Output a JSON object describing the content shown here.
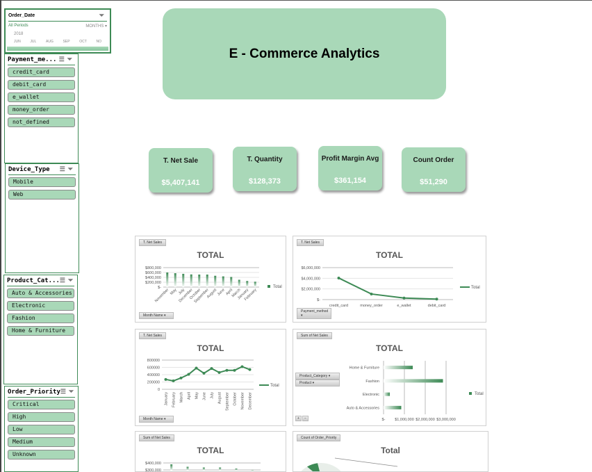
{
  "title": "E - Commerce Analytics",
  "slicers": {
    "order_date": {
      "title": "Order_Date",
      "all_periods": "All Periods",
      "unit": "MONTHS",
      "year": "2018",
      "months": [
        "JUN",
        "JUL",
        "AUG",
        "SEP",
        "OCT",
        "NO"
      ]
    },
    "payment": {
      "title": "Payment_me...",
      "items": [
        "credit_card",
        "debit_card",
        "e_wallet",
        "money_order",
        "not_defined"
      ]
    },
    "device": {
      "title": "Device_Type",
      "items": [
        "Mobile",
        "Web"
      ]
    },
    "category": {
      "title": "Product_Cat...",
      "items": [
        "Auto & Accessories",
        "Electronic",
        "Fashion",
        "Home & Furniture"
      ]
    },
    "priority": {
      "title": "Order_Priority",
      "items": [
        "Critical",
        "High",
        "Low",
        "Medium",
        "Unknown"
      ]
    }
  },
  "kpis": [
    {
      "label": "T. Net Sale",
      "value": "$5,407,141"
    },
    {
      "label": "T. Quantity",
      "value": "$128,373"
    },
    {
      "label": "Profit Margin Avg",
      "value": "$361,154"
    },
    {
      "label": "Count Order",
      "value": "$51,290"
    }
  ],
  "accent": "#3d8a55",
  "chart_data": [
    {
      "type": "bar",
      "field_button": "T. Net Sales",
      "filter_button": "Month Name",
      "title": "TOTAL",
      "legend": "Total",
      "legend_position": "right",
      "categories": [
        "November",
        "May",
        "July",
        "December",
        "October",
        "September",
        "August",
        "June",
        "April",
        "March",
        "January",
        "February"
      ],
      "values": [
        600000,
        570000,
        545000,
        520000,
        515000,
        515000,
        465000,
        440000,
        415000,
        300000,
        250000,
        220000
      ],
      "yticks": [
        "$-",
        "$200,000",
        "$400,000",
        "$600,000",
        "$800,000"
      ],
      "ylim": [
        0,
        800000
      ]
    },
    {
      "type": "line",
      "field_button": "T. Net Sales",
      "filter_button": "Payment_method",
      "title": "TOTAL",
      "legend": "Total",
      "legend_position": "right",
      "categories": [
        "credit_card",
        "money_order",
        "e_wallet",
        "debit_card"
      ],
      "values": [
        4050000,
        1050000,
        300000,
        100000
      ],
      "yticks": [
        "$-",
        "$2,000,000",
        "$4,000,000",
        "$6,000,000"
      ],
      "ylim": [
        0,
        6000000
      ]
    },
    {
      "type": "line",
      "field_button": "T. Net Sales",
      "filter_button": "Month Name",
      "title": "TOTAL",
      "legend": "Total",
      "legend_position": "right",
      "categories": [
        "January",
        "February",
        "March",
        "April",
        "May",
        "June",
        "July",
        "August",
        "September",
        "October",
        "November",
        "December"
      ],
      "values": [
        270000,
        230000,
        310000,
        410000,
        580000,
        440000,
        570000,
        460000,
        520000,
        520000,
        620000,
        540000
      ],
      "yticks": [
        "0",
        "200000",
        "400000",
        "600000",
        "800000"
      ],
      "ylim": [
        0,
        800000
      ]
    },
    {
      "type": "bar",
      "orientation": "horizontal",
      "field_button": "Sum of Net Sales",
      "filter_buttons": [
        "Product_Category",
        "Product"
      ],
      "title": "TOTAL",
      "legend": "Total",
      "legend_position": "right",
      "categories": [
        "Home & Furniture",
        "Fashion",
        "Electronic",
        "Auto & Accessories"
      ],
      "values": [
        1400000,
        2850000,
        300000,
        850000
      ],
      "xticks": [
        "$-",
        "$1,000,000",
        "$2,000,000",
        "$3,000,000"
      ],
      "xlim": [
        0,
        3000000
      ]
    },
    {
      "type": "bar",
      "field_button": "Sum of Net Sales",
      "title": "TOTAL",
      "values": [
        380000,
        345000,
        335000,
        335000,
        320000,
        300000
      ],
      "yticks": [
        "$300,000",
        "$400,000"
      ]
    },
    {
      "type": "pie",
      "field_button": "Count of Order_Priority",
      "title": "Total"
    }
  ]
}
